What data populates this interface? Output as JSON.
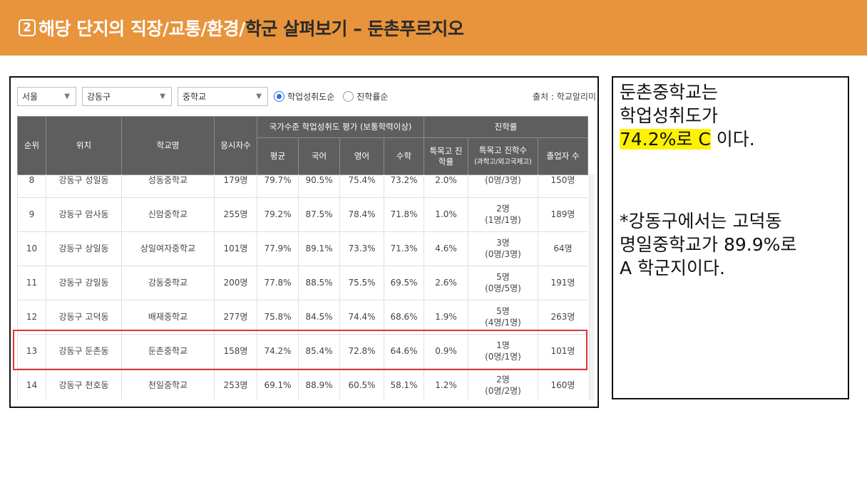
{
  "banner": {
    "number": "2",
    "title_main": "해당 단지의 직장/교통/환경/",
    "title_dark": "학군 살펴보기 – 둔촌푸르지오"
  },
  "filters": {
    "region": "서울",
    "district": "강동구",
    "school_type": "중학교",
    "radio_achievement": "학업성취도순",
    "radio_admission": "진학률순",
    "source": "출처 : 학교알리미"
  },
  "table": {
    "headers": {
      "rank": "순위",
      "location": "위치",
      "school": "학교명",
      "applicants": "응시자수",
      "national_group": "국가수준 학업성취도 평가 (보통학력이상)",
      "avg": "평균",
      "korean": "국어",
      "english": "영어",
      "math": "수학",
      "admission_group": "진학률",
      "special_rate": "특목고 진학률",
      "special_count": "특목고 진학수",
      "special_count_sub": "(과학고/외고국제고)",
      "graduates": "졸업자 수"
    },
    "rows": [
      {
        "rank": "8",
        "location": "강동구 성일동",
        "school": "성동중학교",
        "applicants": "179명",
        "avg": "79.7%",
        "korean": "90.5%",
        "english": "75.4%",
        "math": "73.2%",
        "special_rate": "2.0%",
        "special_count": "",
        "special_sub": "(0명/3명)",
        "graduates": "150명"
      },
      {
        "rank": "9",
        "location": "강동구 암사동",
        "school": "신암중학교",
        "applicants": "255명",
        "avg": "79.2%",
        "korean": "87.5%",
        "english": "78.4%",
        "math": "71.8%",
        "special_rate": "1.0%",
        "special_count": "2명",
        "special_sub": "(1명/1명)",
        "graduates": "189명"
      },
      {
        "rank": "10",
        "location": "강동구 상일동",
        "school": "상일여자중학교",
        "applicants": "101명",
        "avg": "77.9%",
        "korean": "89.1%",
        "english": "73.3%",
        "math": "71.3%",
        "special_rate": "4.6%",
        "special_count": "3명",
        "special_sub": "(0명/3명)",
        "graduates": "64명"
      },
      {
        "rank": "11",
        "location": "강동구 강일동",
        "school": "강동중학교",
        "applicants": "200명",
        "avg": "77.8%",
        "korean": "88.5%",
        "english": "75.5%",
        "math": "69.5%",
        "special_rate": "2.6%",
        "special_count": "5명",
        "special_sub": "(0명/5명)",
        "graduates": "191명"
      },
      {
        "rank": "12",
        "location": "강동구 고덕동",
        "school": "배재중학교",
        "applicants": "277명",
        "avg": "75.8%",
        "korean": "84.5%",
        "english": "74.4%",
        "math": "68.6%",
        "special_rate": "1.9%",
        "special_count": "5명",
        "special_sub": "(4명/1명)",
        "graduates": "263명"
      },
      {
        "rank": "13",
        "location": "강동구 둔촌동",
        "school": "둔촌중학교",
        "applicants": "158명",
        "avg": "74.2%",
        "korean": "85.4%",
        "english": "72.8%",
        "math": "64.6%",
        "special_rate": "0.9%",
        "special_count": "1명",
        "special_sub": "(0명/1명)",
        "graduates": "101명"
      },
      {
        "rank": "14",
        "location": "강동구 천호동",
        "school": "천일중학교",
        "applicants": "253명",
        "avg": "69.1%",
        "korean": "88.9%",
        "english": "60.5%",
        "math": "58.1%",
        "special_rate": "1.2%",
        "special_count": "2명",
        "special_sub": "(0명/2명)",
        "graduates": "160명"
      },
      {
        "rank": "",
        "location": "",
        "school": "",
        "applicants": "",
        "avg": "",
        "korean": "",
        "english": "",
        "math": "",
        "special_rate": "",
        "special_count": "",
        "special_sub": "",
        "graduates": ""
      }
    ]
  },
  "note": {
    "line1": "둔촌중학교는",
    "line2": "학업성취도가",
    "line3_highlight": "74.2%로 C",
    "line3_rest": " 이다.",
    "line4": "*강동구에서는 고덕동",
    "line5": "명일중학교가  89.9%로",
    "line6": "A 학군지이다."
  },
  "colors": {
    "banner": "#e8943c",
    "table_header": "#5e5e5e",
    "highlight_box": "#e23434",
    "note_highlight": "#fff200",
    "radio_selected": "#2f6fde"
  }
}
